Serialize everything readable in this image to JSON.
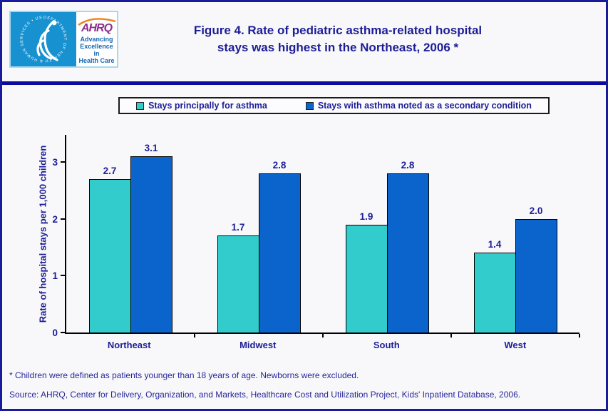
{
  "header": {
    "hhs_ring_text": "DEPARTMENT OF HEALTH & HUMAN SERVICES • USA",
    "ahrq_acronym": "AHRQ",
    "ahrq_tagline_line1": "Advancing",
    "ahrq_tagline_line2": "Excellence in",
    "ahrq_tagline_line3": "Health Care",
    "title_line1": "Figure 4. Rate of pediatric asthma-related hospital",
    "title_line2": "stays was highest in the Northeast, 2006 *"
  },
  "chart_data": {
    "type": "bar",
    "categories": [
      "Northeast",
      "Midwest",
      "South",
      "West"
    ],
    "series": [
      {
        "name": "Stays principally for asthma",
        "color_key": "teal",
        "values": [
          2.7,
          1.7,
          1.9,
          1.4
        ]
      },
      {
        "name": "Stays with asthma noted as a secondary condition",
        "color_key": "blue",
        "values": [
          3.1,
          2.8,
          2.8,
          2.0
        ]
      }
    ],
    "value_labels": [
      [
        "2.7",
        "3.1"
      ],
      [
        "1.7",
        "2.8"
      ],
      [
        "1.9",
        "2.8"
      ],
      [
        "1.4",
        "2.0"
      ]
    ],
    "title": "Figure 4. Rate of pediatric asthma-related hospital stays was highest in the Northeast, 2006 *",
    "xlabel": "",
    "ylabel": "Rate of hospital stays per 1,000 children",
    "yticks": [
      0,
      1,
      2,
      3
    ],
    "ylim": [
      0,
      3.5
    ],
    "grid": false,
    "legend_position": "top-center"
  },
  "footnotes": {
    "note": "* Children were defined as patients younger than 18 years of age. Newborns were excluded.",
    "source": "Source: AHRQ, Center for Delivery, Organization, and Markets, Healthcare Cost and Utilization Project, Kids' Inpatient Database, 2006."
  },
  "colors": {
    "teal": "#33cccc",
    "blue": "#0b63cc",
    "navy_text": "#1d1d96",
    "divider_navy": "#0b0b9e",
    "border_navy": "#1a1a9c",
    "hhs_blue": "#1791d0",
    "ahrq_purple": "#8e2f8e",
    "arc_orange": "#ef8019",
    "tagline_blue": "#1766b1"
  }
}
